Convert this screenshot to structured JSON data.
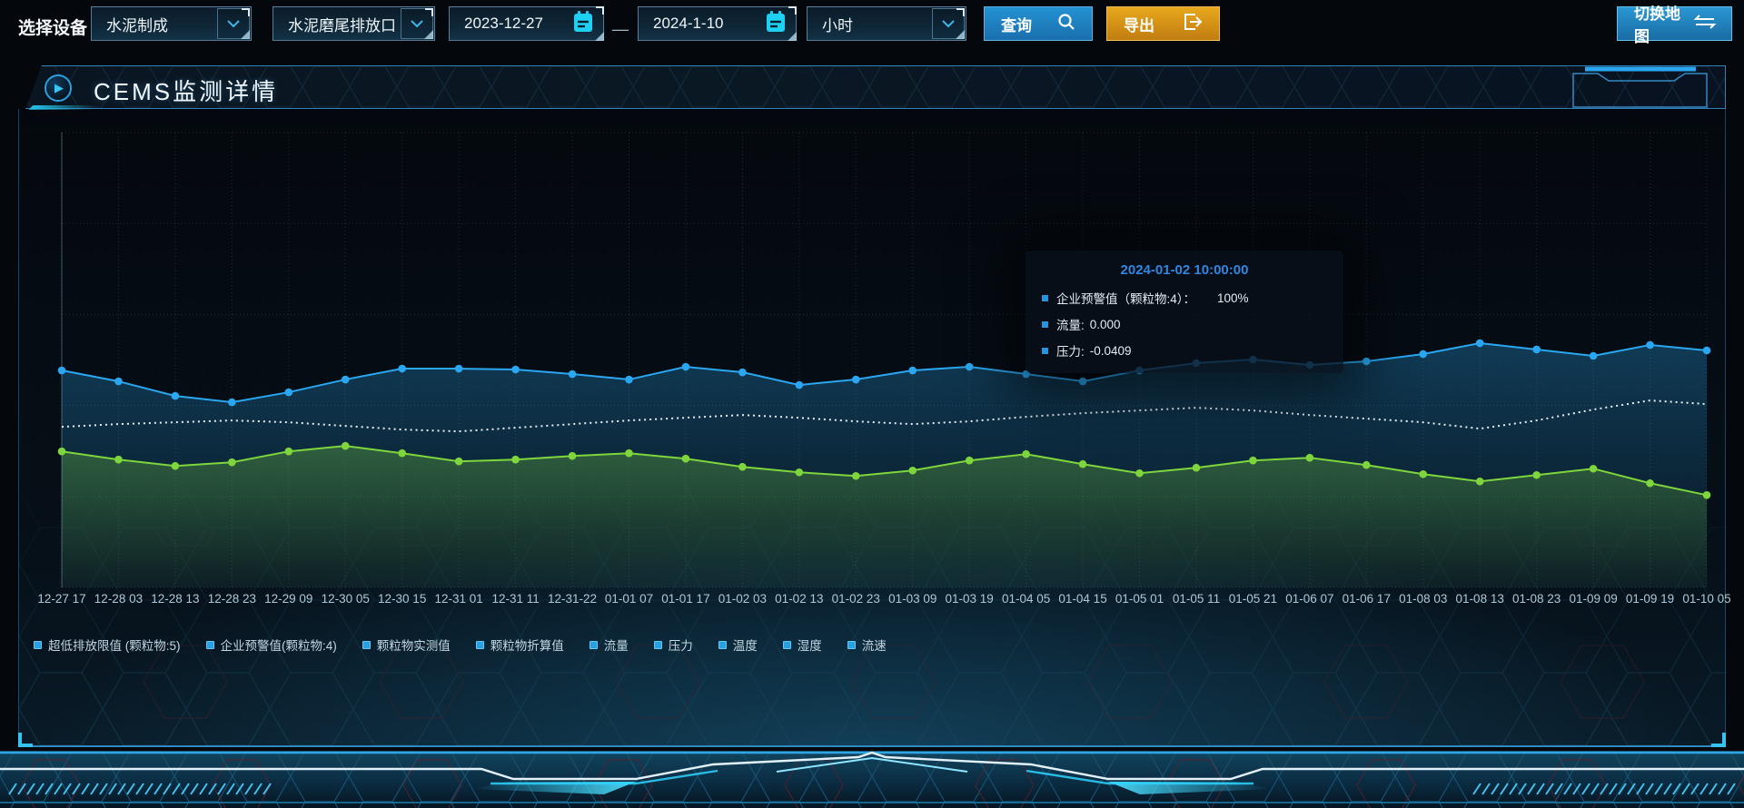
{
  "toolbar": {
    "device_label": "选择设备",
    "select_device_type": "水泥制成",
    "select_outlet": "水泥磨尾排放口",
    "date_start": "2023-12-27",
    "date_separator": "—",
    "date_end": "2024-1-10",
    "select_interval": "小时",
    "query_label": "查询",
    "export_label": "导出",
    "switch_map_label": "切换地图"
  },
  "panel": {
    "title": "CEMS监测详情"
  },
  "tooltip": {
    "title": "2024-01-02 10:00:00",
    "rows": [
      {
        "label": "企业预警值（颗粒物:4）：",
        "value": "100%"
      },
      {
        "label": "流量:",
        "value": "0.000"
      },
      {
        "label": "压力:",
        "value": "-0.0409"
      }
    ]
  },
  "chart_data": {
    "type": "line",
    "title": "",
    "xlabel": "",
    "ylabel": "",
    "ylim": [
      0,
      100
    ],
    "grid": true,
    "legend_position": "bottom",
    "categories": [
      "12-27 17",
      "12-28 03",
      "12-28 13",
      "12-28 23",
      "12-29 09",
      "12-30 05",
      "12-30 15",
      "12-31 01",
      "12-31 11",
      "12-31-22",
      "01-01 07",
      "01-01 17",
      "01-02 03",
      "01-02 13",
      "01-02 23",
      "01-03 09",
      "01-03 19",
      "01-04 05",
      "01-04 15",
      "01-05 01",
      "01-05 11",
      "01-05 21",
      "01-06 07",
      "01-06 17",
      "01-08 03",
      "01-08 13",
      "01-08 23",
      "01-09 09",
      "01-09 19",
      "01-10 05"
    ],
    "legend": [
      "超低排放限值 (颗粒物:5)",
      "企业预警值(颗粒物:4)",
      "颗粒物实测值",
      "颗粒物折算值",
      "流量",
      "压力",
      "温度",
      "湿度",
      "流速"
    ],
    "series": [
      {
        "name": "企业预警值(颗粒物:4)",
        "color": "#2aa7f0",
        "style": "solid",
        "markers": true,
        "area": true,
        "values": [
          47.7,
          45.3,
          42.1,
          40.7,
          42.9,
          45.7,
          48.1,
          48.1,
          47.9,
          46.9,
          45.7,
          48.5,
          47.3,
          44.5,
          45.7,
          47.7,
          48.5,
          46.9,
          45.3,
          47.7,
          49.3,
          50.1,
          48.9,
          49.7,
          51.3,
          53.7,
          52.3,
          50.9,
          53.3,
          52.1
        ]
      },
      {
        "name": "颗粒物折算值",
        "color": "#e6eef4",
        "style": "dotted",
        "markers": false,
        "area": false,
        "values": [
          35.3,
          35.9,
          36.3,
          36.7,
          36.3,
          35.5,
          34.7,
          34.3,
          35.1,
          35.9,
          36.7,
          37.3,
          37.9,
          37.3,
          36.5,
          35.9,
          36.5,
          37.5,
          38.3,
          38.9,
          39.5,
          38.9,
          37.9,
          37.1,
          36.3,
          34.9,
          36.7,
          39.1,
          41.1,
          40.3
        ]
      },
      {
        "name": "颗粒物实测值",
        "color": "#7ed63c",
        "style": "solid",
        "markers": true,
        "area": true,
        "values": [
          29.9,
          28.1,
          26.7,
          27.5,
          29.9,
          31.1,
          29.5,
          27.7,
          28.1,
          28.9,
          29.5,
          28.3,
          26.5,
          25.3,
          24.5,
          25.7,
          27.9,
          29.3,
          27.1,
          25.1,
          26.3,
          27.9,
          28.5,
          26.9,
          24.9,
          23.3,
          24.7,
          26.1,
          22.9,
          20.3
        ]
      }
    ]
  }
}
